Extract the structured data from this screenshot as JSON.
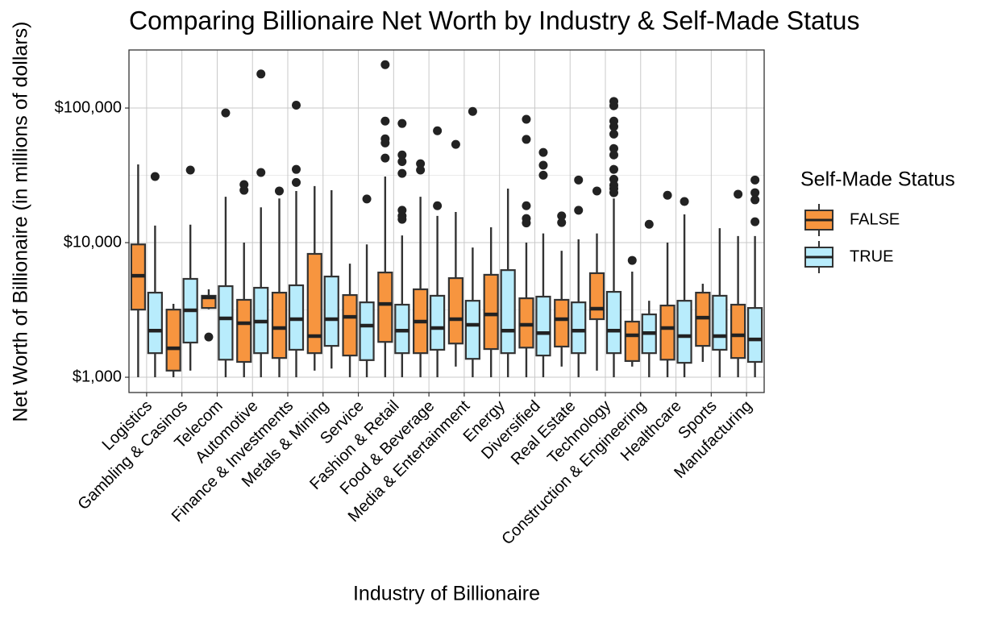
{
  "chart_data": {
    "type": "box",
    "title": "Comparing Billionaire Net Worth by Industry & Self-Made Status",
    "x_label": "Industry of Billionaire",
    "y_label": "Net Worth of Billionaire (in millions of dollars)",
    "legend_title": "Self-Made Status",
    "legend_position": "right",
    "log_scale": true,
    "grid": true,
    "categories": [
      "Logistics",
      "Gambling & Casinos",
      "Telecom",
      "Automotive",
      "Finance & Investments",
      "Metals & Mining",
      "Service",
      "Fashion & Retail",
      "Food & Beverage",
      "Media & Entertainment",
      "Energy",
      "Diversified",
      "Real Estate",
      "Technology",
      "Construction & Engineering",
      "Healthcare",
      "Sports",
      "Manufacturing"
    ],
    "ylim": [
      770,
      270000
    ],
    "yticks": [
      {
        "value": 1000,
        "label": "$1,000"
      },
      {
        "value": 10000,
        "label": "$10,000"
      },
      {
        "value": 100000,
        "label": "$100,000"
      }
    ],
    "series": [
      {
        "name": "FALSE",
        "color": "#f7953f",
        "min": [
          1000,
          1000,
          3200,
          1000,
          1000,
          1120,
          1000,
          1000,
          1000,
          1200,
          1000,
          1000,
          1200,
          1120,
          1200,
          1000,
          1300,
          1000
        ],
        "q1": [
          3180,
          1120,
          3270,
          1300,
          1390,
          1510,
          1450,
          1830,
          1510,
          1780,
          1620,
          1660,
          1690,
          2700,
          1320,
          1350,
          1710,
          1390
        ],
        "median": [
          5680,
          1640,
          3920,
          2520,
          2320,
          2020,
          2810,
          3500,
          2590,
          2700,
          2930,
          2450,
          2700,
          3230,
          2050,
          2320,
          2770,
          2050
        ],
        "q3": [
          9700,
          3180,
          4030,
          3760,
          4250,
          8250,
          4080,
          6000,
          4500,
          5450,
          5770,
          3860,
          3760,
          5930,
          2590,
          3410,
          4250,
          3460
        ],
        "max": [
          38100,
          3510,
          4500,
          10000,
          21300,
          26300,
          6980,
          31000,
          21900,
          16900,
          13000,
          10000,
          8700,
          11700,
          6090,
          10000,
          4950,
          11200
        ],
        "outliers": [
          [],
          [],
          [
            1990
          ],
          [
            27000,
            24500
          ],
          [
            24200
          ],
          [],
          [],
          [
            210000,
            80000,
            59000,
            55000,
            42500
          ],
          [
            38600,
            34600
          ],
          [
            53700
          ],
          [],
          [
            82500,
            58500,
            18800,
            15100,
            14000
          ],
          [
            15800,
            14100
          ],
          [
            24200
          ],
          [
            7380
          ],
          [
            22500
          ],
          [],
          [
            22900
          ]
        ]
      },
      {
        "name": "TRUE",
        "color": "#b8ecfc",
        "min": [
          1000,
          1120,
          1000,
          1000,
          1000,
          1160,
          1000,
          1000,
          1000,
          1000,
          1000,
          1000,
          1000,
          1000,
          1000,
          1000,
          1000,
          1000
        ],
        "q1": [
          1510,
          1810,
          1350,
          1510,
          1600,
          1710,
          1340,
          1510,
          1600,
          1370,
          1510,
          1450,
          1510,
          1510,
          1510,
          1280,
          1600,
          1300
        ],
        "median": [
          2220,
          3140,
          2740,
          2590,
          2700,
          2700,
          2420,
          2220,
          2320,
          2450,
          2220,
          2130,
          2220,
          2220,
          2130,
          2020,
          2020,
          1910
        ],
        "q3": [
          4250,
          5380,
          4750,
          4620,
          4820,
          5600,
          3600,
          3460,
          4030,
          3700,
          6250,
          3970,
          3600,
          4310,
          2930,
          3700,
          4030,
          3270
        ],
        "max": [
          13400,
          13600,
          21900,
          18300,
          24200,
          24500,
          9700,
          11300,
          15800,
          9200,
          25200,
          11700,
          10600,
          21300,
          3700,
          16200,
          12800,
          11200
        ],
        "outliers": [
          [
            31000
          ],
          [
            34600
          ],
          [
            92000
          ],
          [
            179000,
            33200
          ],
          [
            105000,
            35000,
            28000
          ],
          [],
          [
            21100
          ],
          [
            76800,
            44800,
            40000,
            32700,
            17400,
            15800,
            14900
          ],
          [
            67800,
            18800
          ],
          [
            94400
          ],
          [],
          [
            46800,
            37600,
            31700
          ],
          [
            29200,
            17400
          ],
          [
            112000,
            104000,
            80000,
            72800,
            64000,
            50000,
            44800,
            35000,
            29600,
            26700,
            25200,
            23500
          ],
          [
            13700
          ],
          [
            20200
          ],
          [],
          [
            29200,
            23500,
            20800,
            14300
          ]
        ]
      }
    ]
  }
}
